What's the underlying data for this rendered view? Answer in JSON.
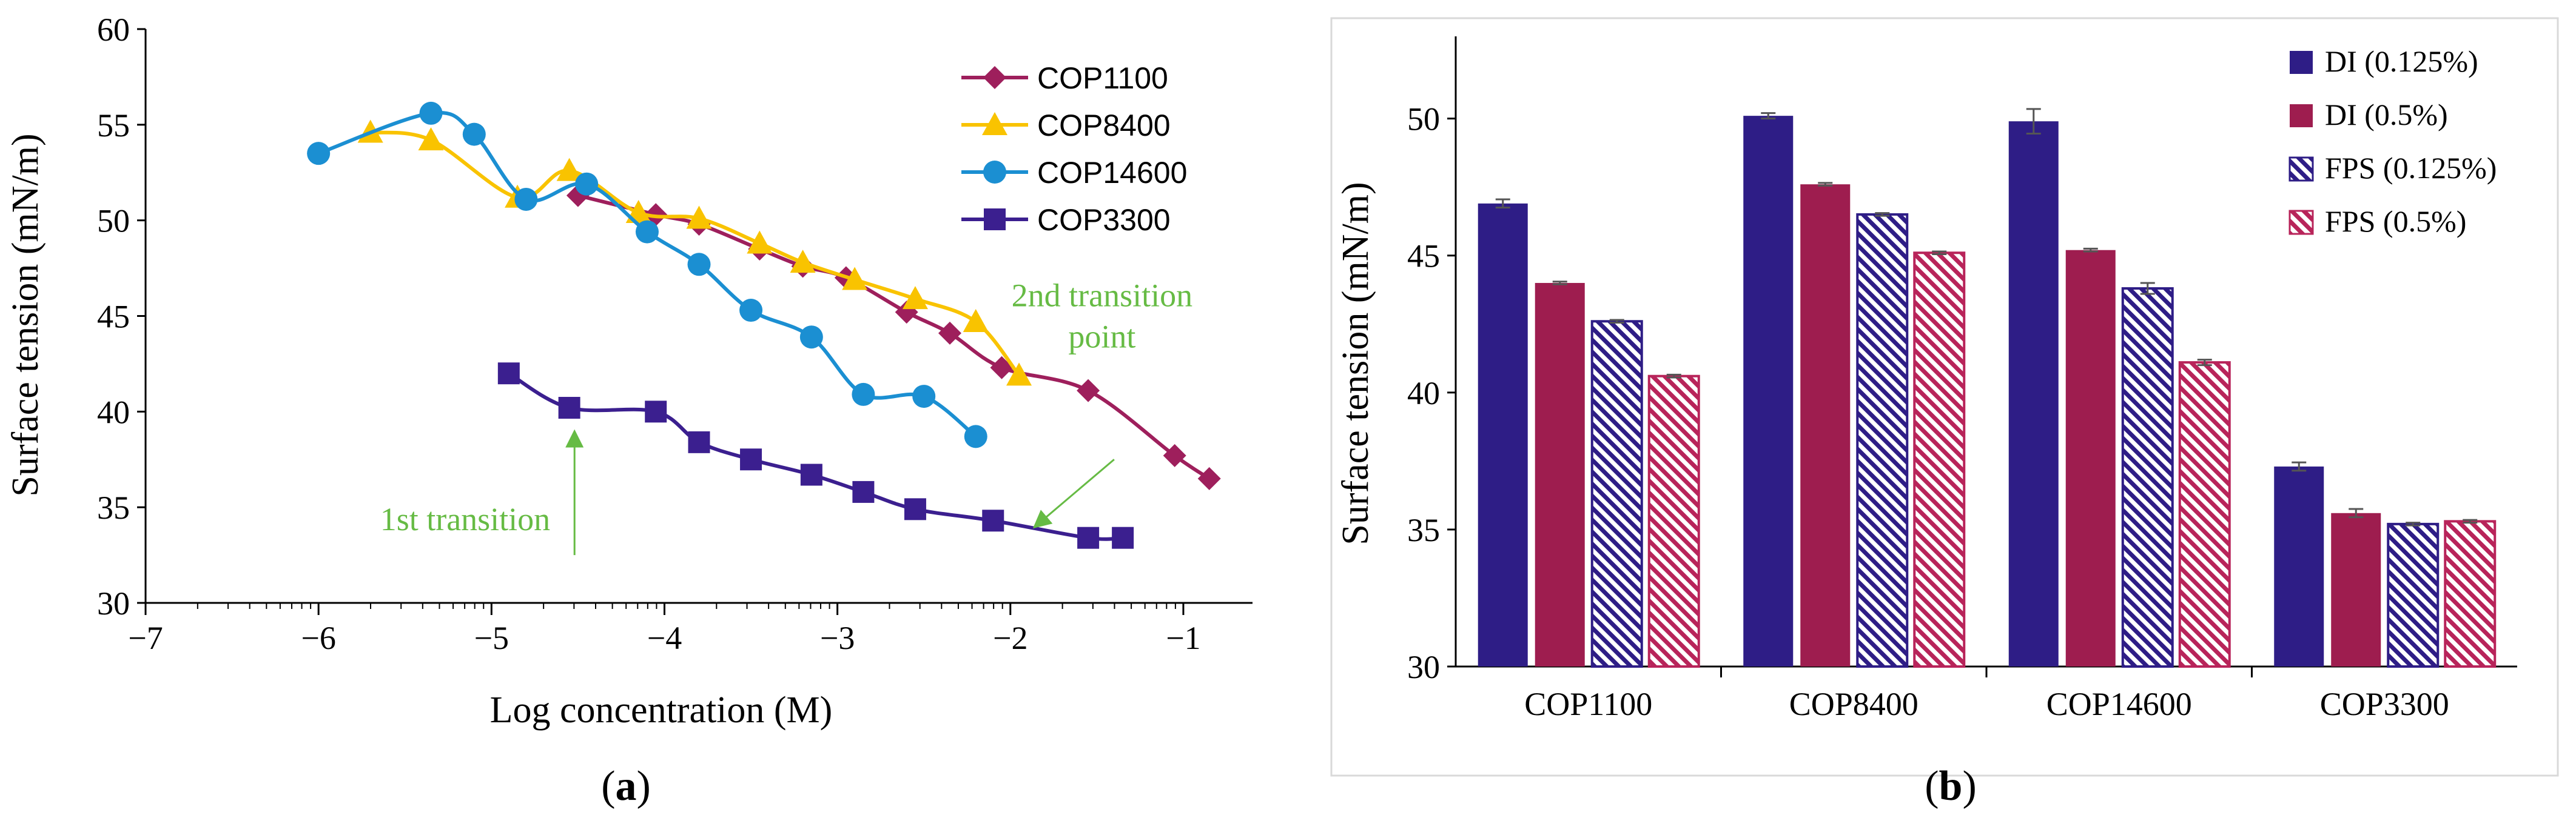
{
  "chart_data": [
    {
      "panel": "(a)",
      "panel_letter": "a",
      "type": "line",
      "title": "",
      "xlabel": "Log concentration (M)",
      "ylabel": "Surface tension (mN/m)",
      "xlim": [
        -7,
        -0.6
      ],
      "ylim": [
        30,
        60
      ],
      "xticks": [
        -7,
        -6,
        -5,
        -4,
        -3,
        -2,
        -1
      ],
      "xtick_labels": [
        "−7",
        "−6",
        "−5",
        "−4",
        "−3",
        "−2",
        "−1"
      ],
      "yticks": [
        30,
        35,
        40,
        45,
        50,
        55,
        60
      ],
      "legend_position": "top-right",
      "series": [
        {
          "name": "COP1100",
          "color": "#9e1f5c",
          "marker": "diamond",
          "x": [
            -4.5,
            -4.05,
            -3.8,
            -3.45,
            -3.2,
            -2.95,
            -2.6,
            -2.35,
            -2.05,
            -1.55,
            -1.05,
            -0.85
          ],
          "y": [
            51.3,
            50.3,
            49.8,
            48.5,
            47.6,
            47.0,
            45.2,
            44.1,
            42.3,
            41.1,
            37.7,
            36.5
          ]
        },
        {
          "name": "COP8400",
          "color": "#f9c300",
          "marker": "triangle",
          "x": [
            -5.7,
            -5.35,
            -4.85,
            -4.55,
            -4.15,
            -3.8,
            -3.45,
            -3.2,
            -2.9,
            -2.55,
            -2.2,
            -1.95
          ],
          "y": [
            54.6,
            54.2,
            51.2,
            52.6,
            50.4,
            50.1,
            48.8,
            47.8,
            46.9,
            45.9,
            44.7,
            41.9
          ]
        },
        {
          "name": "COP14600",
          "color": "#1b8fd2",
          "marker": "circle",
          "x": [
            -6.0,
            -5.35,
            -5.1,
            -4.8,
            -4.45,
            -4.1,
            -3.8,
            -3.5,
            -3.15,
            -2.85,
            -2.5,
            -2.2
          ],
          "y": [
            53.5,
            55.6,
            54.5,
            51.1,
            51.9,
            49.4,
            47.7,
            45.3,
            43.9,
            40.9,
            40.8,
            38.7
          ]
        },
        {
          "name": "COP3300",
          "color": "#3b1f8f",
          "marker": "square",
          "x": [
            -4.9,
            -4.55,
            -4.05,
            -3.8,
            -3.5,
            -3.15,
            -2.85,
            -2.55,
            -2.1,
            -1.55,
            -1.35
          ],
          "y": [
            42.0,
            40.2,
            40.0,
            38.4,
            37.5,
            36.7,
            35.8,
            34.9,
            34.3,
            33.4,
            33.4
          ]
        }
      ],
      "annotations": [
        {
          "text_lines": [
            "1st transition"
          ],
          "color": "#66bb44",
          "arrow_target": {
            "x": -4.52,
            "y": 38.6
          },
          "arrow_from": {
            "x": -4.52,
            "y": 32.5
          }
        },
        {
          "text_lines": [
            "2nd transition",
            "point"
          ],
          "color": "#66bb44",
          "arrow_target": {
            "x": -1.83,
            "y": 34.2
          },
          "arrow_from": {
            "x": -1.4,
            "y": 37.5
          }
        }
      ]
    },
    {
      "panel": "(b)",
      "panel_letter": "b",
      "type": "bar",
      "title": "",
      "xlabel": "",
      "ylabel": "Surface tension (mN/m)",
      "categories": [
        "COP1100",
        "COP8400",
        "COP14600",
        "COP3300"
      ],
      "ylim": [
        30,
        53
      ],
      "yticks": [
        30,
        35,
        40,
        45,
        50
      ],
      "legend_position": "top-right",
      "series": [
        {
          "name": "DI (0.125%)",
          "color": "#2e1d86",
          "pattern": "solid",
          "values": [
            46.9,
            50.1,
            49.9,
            37.3
          ],
          "errors": [
            0.15,
            0.1,
            0.45,
            0.15
          ]
        },
        {
          "name": "DI (0.5%)",
          "color": "#9e1d4f",
          "pattern": "solid",
          "values": [
            44.0,
            47.6,
            45.2,
            35.6
          ],
          "errors": [
            0.05,
            0.05,
            0.05,
            0.15
          ]
        },
        {
          "name": "FPS (0.125%)",
          "color": "#2e1d86",
          "pattern": "hatched",
          "values": [
            42.6,
            46.5,
            43.8,
            35.2
          ],
          "errors": [
            0.05,
            0.05,
            0.2,
            0.05
          ]
        },
        {
          "name": "FPS (0.5%)",
          "color": "#b8245a",
          "pattern": "hatched",
          "values": [
            40.6,
            45.1,
            41.1,
            35.3
          ],
          "errors": [
            0.05,
            0.05,
            0.1,
            0.05
          ]
        }
      ]
    }
  ]
}
